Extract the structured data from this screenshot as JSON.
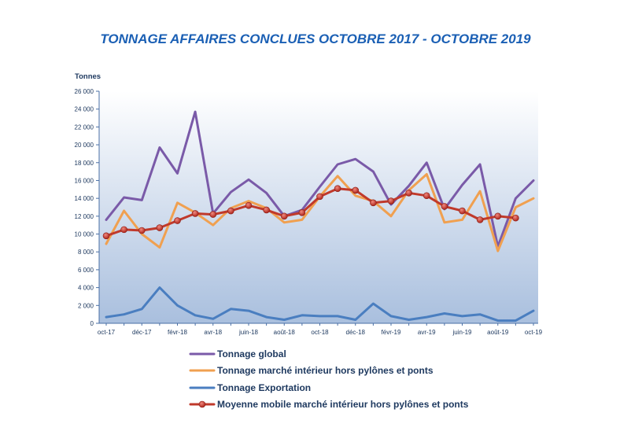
{
  "chart_data": {
    "type": "line",
    "title": "TONNAGE AFFAIRES CONCLUES OCTOBRE 2017 - OCTOBRE 2019",
    "ylabel": "Tonnes",
    "xlabel": "",
    "ylim": [
      0,
      26000
    ],
    "ytick_labels": [
      "0",
      "2 000",
      "4 000",
      "6 000",
      "8 000",
      "10 000",
      "12 000",
      "14 000",
      "16 000",
      "18 000",
      "20 000",
      "22 000",
      "24 000",
      "26 000"
    ],
    "x": [
      "oct-17",
      "nov-17",
      "déc-17",
      "janv-18",
      "févr-18",
      "mars-18",
      "avr-18",
      "mai-18",
      "juin-18",
      "juil-18",
      "août-18",
      "sept-18",
      "oct-18",
      "nov-18",
      "déc-18",
      "janv-19",
      "févr-19",
      "mars-19",
      "avr-19",
      "mai-19",
      "juin-19",
      "juil-19",
      "août-19",
      "sept-19",
      "oct-19"
    ],
    "x_tick_labels": [
      "oct-17",
      "",
      "déc-17",
      "",
      "févr-18",
      "",
      "avr-18",
      "",
      "juin-18",
      "",
      "août-18",
      "",
      "oct-18",
      "",
      "déc-18",
      "",
      "févr-19",
      "",
      "avr-19",
      "",
      "juin-19",
      "",
      "août-19",
      "",
      "oct-19"
    ],
    "grid": false,
    "legend_position": "bottom",
    "series": [
      {
        "name": "Tonnage global",
        "color": "#7a5aa8",
        "values": [
          11600,
          14100,
          13800,
          19700,
          16800,
          23700,
          12300,
          14700,
          16100,
          14600,
          12000,
          12700,
          15300,
          17800,
          18400,
          17000,
          13300,
          15400,
          18000,
          12800,
          15500,
          17800,
          8600,
          14000,
          16000
        ]
      },
      {
        "name": "Tonnage marché intérieur hors pylônes et ponts",
        "color": "#f0a050",
        "values": [
          8900,
          12600,
          10000,
          8500,
          13500,
          12400,
          11000,
          12900,
          13700,
          12900,
          11300,
          11600,
          14200,
          16500,
          14300,
          13700,
          12000,
          14900,
          16700,
          11300,
          11600,
          14800,
          8100,
          13000,
          14000
        ]
      },
      {
        "name": "Tonnage Exportation",
        "color": "#4a7ec0",
        "values": [
          700,
          1000,
          1600,
          4000,
          2000,
          900,
          500,
          1600,
          1400,
          700,
          400,
          900,
          800,
          800,
          400,
          2200,
          800,
          400,
          700,
          1100,
          800,
          1000,
          300,
          300,
          1400
        ]
      },
      {
        "name": "Moyenne mobile marché intérieur hors pylônes et ponts",
        "color": "#c0392b",
        "marker": "circle",
        "values": [
          9800,
          10500,
          10400,
          10700,
          11500,
          12300,
          12200,
          12600,
          13200,
          12700,
          12000,
          12400,
          14200,
          15100,
          14900,
          13500,
          13700,
          14600,
          14300,
          13100,
          12600,
          11600,
          12000,
          11800,
          null
        ]
      }
    ]
  }
}
